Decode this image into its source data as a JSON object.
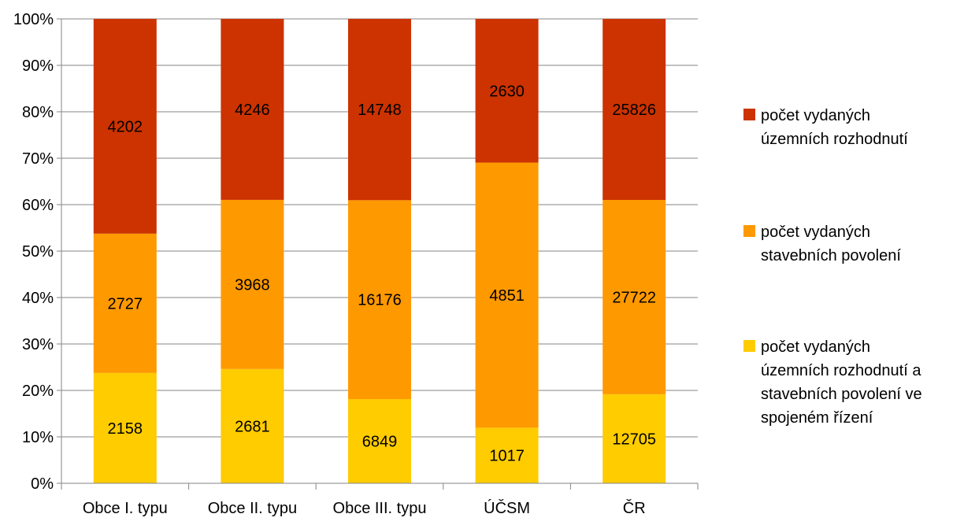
{
  "chart_data": {
    "type": "bar",
    "stacked": true,
    "normalized": true,
    "categories": [
      "Obce I. typu",
      "Obce II. typu",
      "Obce III. typu",
      "ÚČSM",
      "ČR"
    ],
    "series": [
      {
        "name": "počet vydaných územních rozhodnutí a stavebních povolení ve spojeném řízení",
        "legend_lines": [
          "počet vydaných",
          "územních rozhodnutí a",
          "stavebních povolení ve",
          "spojeném řízení"
        ],
        "color": "#FFCC00",
        "values": [
          2158,
          2681,
          6849,
          1017,
          12705
        ]
      },
      {
        "name": "počet vydaných stavebních povolení",
        "legend_lines": [
          "počet vydaných",
          "stavebních povolení"
        ],
        "color": "#FF9900",
        "values": [
          2727,
          3968,
          16176,
          4851,
          27722
        ]
      },
      {
        "name": "počet vydaných územních rozhodnutí",
        "legend_lines": [
          "počet vydaných",
          "územních rozhodnutí"
        ],
        "color": "#CC3300",
        "values": [
          4202,
          4246,
          14748,
          2630,
          25826
        ]
      }
    ],
    "y_ticks": [
      "0%",
      "10%",
      "20%",
      "30%",
      "40%",
      "50%",
      "60%",
      "70%",
      "80%",
      "90%",
      "100%"
    ],
    "ylim": [
      0,
      100
    ],
    "grid": true,
    "legend_position": "right",
    "title": "",
    "xlabel": "",
    "ylabel": ""
  }
}
